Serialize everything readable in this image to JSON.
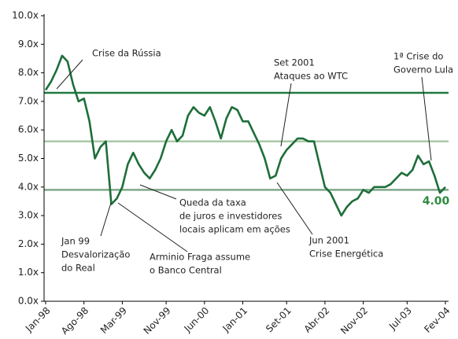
{
  "chart_data": {
    "type": "line",
    "x": [
      "1998-01",
      "1998-02",
      "1998-03",
      "1998-04",
      "1998-05",
      "1998-06",
      "1998-07",
      "1998-08",
      "1998-09",
      "1998-10",
      "1998-11",
      "1998-12",
      "1999-01",
      "1999-02",
      "1999-03",
      "1999-04",
      "1999-05",
      "1999-06",
      "1999-07",
      "1999-08",
      "1999-09",
      "1999-10",
      "1999-11",
      "1999-12",
      "2000-01",
      "2000-02",
      "2000-03",
      "2000-04",
      "2000-05",
      "2000-06",
      "2000-07",
      "2000-08",
      "2000-09",
      "2000-10",
      "2000-11",
      "2000-12",
      "2001-01",
      "2001-02",
      "2001-03",
      "2001-04",
      "2001-05",
      "2001-06",
      "2001-07",
      "2001-08",
      "2001-09",
      "2001-10",
      "2001-11",
      "2001-12",
      "2002-01",
      "2002-02",
      "2002-03",
      "2002-04",
      "2002-05",
      "2002-06",
      "2002-07",
      "2002-08",
      "2002-09",
      "2002-10",
      "2002-11",
      "2002-12",
      "2003-01",
      "2003-02",
      "2003-03",
      "2003-04",
      "2003-05",
      "2003-06",
      "2003-07",
      "2003-08",
      "2003-09",
      "2003-10",
      "2003-11",
      "2003-12",
      "2004-01",
      "2004-02"
    ],
    "series": [
      {
        "color": "#1e6e3a",
        "values": [
          7.4,
          7.7,
          8.1,
          8.6,
          8.4,
          7.6,
          7.0,
          7.1,
          6.3,
          5.0,
          5.4,
          5.6,
          3.4,
          3.6,
          4.0,
          4.8,
          5.2,
          4.8,
          4.5,
          4.3,
          4.6,
          5.0,
          5.6,
          6.0,
          5.6,
          5.8,
          6.5,
          6.8,
          6.6,
          6.5,
          6.8,
          6.3,
          5.7,
          6.4,
          6.8,
          6.7,
          6.3,
          6.3,
          5.9,
          5.5,
          5.0,
          4.3,
          4.4,
          5.0,
          5.3,
          5.5,
          5.7,
          5.7,
          5.6,
          5.6,
          4.8,
          4.0,
          3.8,
          3.4,
          3.0,
          3.3,
          3.5,
          3.6,
          3.9,
          3.8,
          4.0,
          4.0,
          4.0,
          4.1,
          4.3,
          4.5,
          4.4,
          4.6,
          5.1,
          4.8,
          4.9,
          4.4,
          3.8,
          4.0
        ],
        "value_labels": [
          null,
          null,
          null,
          null,
          null,
          null,
          null,
          null,
          null,
          null,
          null,
          null,
          null,
          null,
          null,
          null,
          null,
          null,
          null,
          null,
          null,
          null,
          null,
          null,
          null,
          null,
          null,
          null,
          null,
          null,
          null,
          null,
          null,
          null,
          null,
          null,
          null,
          null,
          null,
          null,
          null,
          null,
          null,
          null,
          null,
          null,
          null,
          null,
          null,
          null,
          null,
          null,
          null,
          null,
          null,
          null,
          null,
          null,
          null,
          null,
          null,
          null,
          null,
          null,
          null,
          null,
          null,
          null,
          null,
          null,
          null,
          null,
          null,
          "4.00"
        ]
      }
    ],
    "reference_lines": [
      {
        "value": 7.3,
        "color": "#1e7a40"
      },
      {
        "value": 5.6,
        "color": "#a9c9a6"
      },
      {
        "value": 3.9,
        "color": "#7fa88a"
      }
    ],
    "ylim": [
      0,
      10
    ],
    "yticks": [
      {
        "value": 0,
        "label": "0.0x"
      },
      {
        "value": 1,
        "label": "1.0x"
      },
      {
        "value": 2,
        "label": "2.0x"
      },
      {
        "value": 3,
        "label": "3.0x"
      },
      {
        "value": 4,
        "label": "4.0x"
      },
      {
        "value": 5,
        "label": "5.0x"
      },
      {
        "value": 6,
        "label": "6.0x"
      },
      {
        "value": 7,
        "label": "7.0x"
      },
      {
        "value": 8,
        "label": "8.0x"
      },
      {
        "value": 9,
        "label": "9.0x"
      },
      {
        "value": 10,
        "label": "10.0x"
      }
    ],
    "xlim": [
      "1998-01",
      "2004-02"
    ],
    "xticks": [
      {
        "value": "1998-01",
        "label": "Jan-98"
      },
      {
        "value": "1998-08",
        "label": "Ago-98"
      },
      {
        "value": "1999-03",
        "label": "Mar-99"
      },
      {
        "value": "1999-11",
        "label": "Nov-99"
      },
      {
        "value": "2000-06",
        "label": "Jun-00"
      },
      {
        "value": "2001-01",
        "label": "Jan-01"
      },
      {
        "value": "2001-09",
        "label": "Set-01"
      },
      {
        "value": "2002-04",
        "label": "Abr-02"
      },
      {
        "value": "2002-11",
        "label": "Nov-02"
      },
      {
        "value": "2003-07",
        "label": "Jul-03"
      },
      {
        "value": "2004-02",
        "label": "Fev-04"
      }
    ],
    "annotations": [
      {
        "text": [
          "Crise da Rússia"
        ]
      },
      {
        "text": [
          "Set 2001",
          "Ataques ao WTC"
        ]
      },
      {
        "text": [
          "1ª Crise do",
          "Governo Lula"
        ]
      },
      {
        "text": [
          "Queda da taxa",
          "de juros e investidores",
          "locais aplicam em ações"
        ]
      },
      {
        "text": [
          "Jan 99",
          "Desvalorização",
          "do Real"
        ]
      },
      {
        "text": [
          "Arminio Fraga assume",
          "o Banco Central"
        ]
      },
      {
        "text": [
          "Jun 2001",
          "Crise Energética"
        ]
      }
    ]
  }
}
